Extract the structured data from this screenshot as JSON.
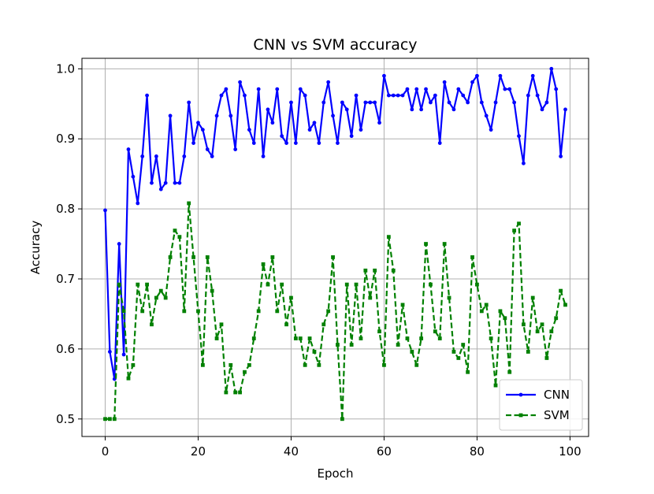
{
  "chart_data": {
    "type": "line",
    "title": "CNN vs SVM accuracy",
    "xlabel": "Epoch",
    "ylabel": "Accuracy",
    "xlim": [
      -5,
      104
    ],
    "ylim": [
      0.475,
      1.015
    ],
    "xticks": [
      0,
      20,
      40,
      60,
      80,
      100
    ],
    "xtick_labels": [
      "0",
      "20",
      "40",
      "60",
      "80",
      "100"
    ],
    "yticks": [
      0.5,
      0.6,
      0.7,
      0.8,
      0.9,
      1.0
    ],
    "ytick_labels": [
      "0.5",
      "0.6",
      "0.7",
      "0.8",
      "0.9",
      "1.0"
    ],
    "grid": true,
    "legend_position": "lower-right",
    "series": [
      {
        "name": "CNN",
        "color": "#0000ff",
        "style": "solid",
        "marker": "circle",
        "values": [
          0.798,
          0.596,
          0.557,
          0.75,
          0.592,
          0.885,
          0.846,
          0.808,
          0.875,
          0.962,
          0.837,
          0.875,
          0.828,
          0.837,
          0.933,
          0.837,
          0.837,
          0.875,
          0.952,
          0.894,
          0.923,
          0.913,
          0.885,
          0.875,
          0.933,
          0.962,
          0.971,
          0.933,
          0.885,
          0.981,
          0.962,
          0.913,
          0.894,
          0.971,
          0.875,
          0.942,
          0.923,
          0.971,
          0.904,
          0.894,
          0.952,
          0.894,
          0.971,
          0.962,
          0.913,
          0.923,
          0.894,
          0.952,
          0.981,
          0.933,
          0.894,
          0.952,
          0.942,
          0.904,
          0.962,
          0.913,
          0.952,
          0.952,
          0.952,
          0.923,
          0.99,
          0.962,
          0.962,
          0.962,
          0.962,
          0.971,
          0.942,
          0.971,
          0.942,
          0.971,
          0.952,
          0.962,
          0.894,
          0.981,
          0.952,
          0.942,
          0.971,
          0.962,
          0.952,
          0.981,
          0.99,
          0.952,
          0.933,
          0.913,
          0.952,
          0.99,
          0.971,
          0.971,
          0.952,
          0.904,
          0.865,
          0.962,
          0.99,
          0.962,
          0.942,
          0.952,
          1.0,
          0.971,
          0.875,
          0.942
        ]
      },
      {
        "name": "SVM",
        "color": "#008000",
        "style": "dashed",
        "marker": "square",
        "values": [
          0.5,
          0.5,
          0.5,
          0.692,
          0.654,
          0.558,
          0.577,
          0.692,
          0.654,
          0.692,
          0.635,
          0.673,
          0.683,
          0.673,
          0.731,
          0.769,
          0.76,
          0.654,
          0.808,
          0.731,
          0.654,
          0.577,
          0.731,
          0.683,
          0.615,
          0.635,
          0.538,
          0.577,
          0.538,
          0.538,
          0.567,
          0.577,
          0.615,
          0.654,
          0.721,
          0.692,
          0.731,
          0.654,
          0.692,
          0.635,
          0.673,
          0.615,
          0.615,
          0.577,
          0.615,
          0.596,
          0.577,
          0.635,
          0.654,
          0.731,
          0.606,
          0.5,
          0.692,
          0.606,
          0.692,
          0.615,
          0.712,
          0.673,
          0.712,
          0.625,
          0.577,
          0.76,
          0.712,
          0.606,
          0.663,
          0.615,
          0.596,
          0.577,
          0.615,
          0.75,
          0.692,
          0.625,
          0.615,
          0.75,
          0.673,
          0.596,
          0.587,
          0.606,
          0.567,
          0.731,
          0.692,
          0.654,
          0.663,
          0.615,
          0.548,
          0.654,
          0.644,
          0.567,
          0.769,
          0.779,
          0.635,
          0.596,
          0.673,
          0.625,
          0.635,
          0.587,
          0.625,
          0.644,
          0.683,
          0.663
        ]
      }
    ]
  }
}
